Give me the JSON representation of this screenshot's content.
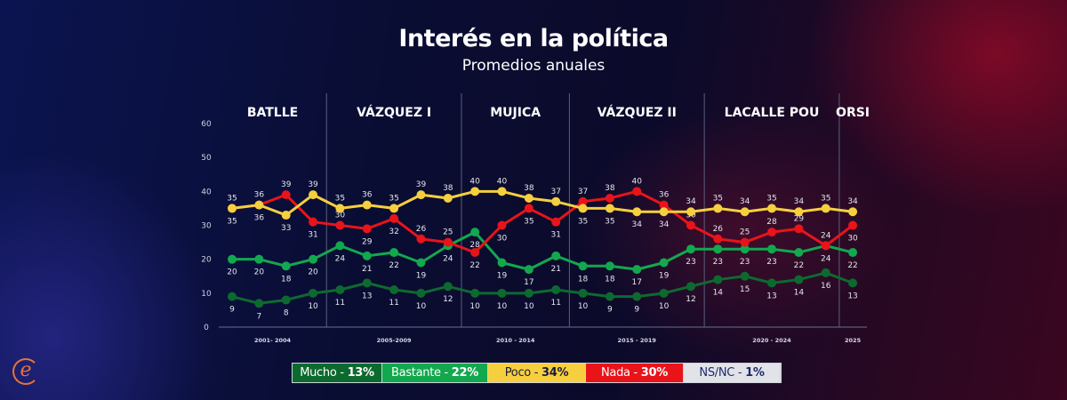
{
  "title": "Interés en la política",
  "subtitle": "Promedios anuales",
  "chart_data": {
    "type": "line",
    "ylim": [
      0,
      60
    ],
    "yticks": [
      0,
      10,
      20,
      30,
      40,
      50,
      60
    ],
    "periods": [
      {
        "name": "BATLLE",
        "years": "2001- 2004",
        "count": 4
      },
      {
        "name": "VÁZQUEZ I",
        "years": "2005-2009",
        "count": 5
      },
      {
        "name": "MUJICA",
        "years": "2010 - 2014",
        "count": 4
      },
      {
        "name": "VÁZQUEZ II",
        "years": "2015 - 2019",
        "count": 5
      },
      {
        "name": "LACALLE POU",
        "years": "2020 - 2024",
        "count": 5
      },
      {
        "name": "ORSI",
        "years": "2025",
        "count": 1
      }
    ],
    "series": [
      {
        "name": "Poco",
        "color": "#f5cf3e",
        "values": [
          35,
          36,
          33,
          39,
          35,
          36,
          35,
          39,
          38,
          40,
          40,
          38,
          37,
          35,
          35,
          34,
          34,
          34,
          35,
          34,
          35,
          34,
          35,
          34
        ]
      },
      {
        "name": "Nada",
        "color": "#e8141a",
        "values": [
          35,
          36,
          39,
          31,
          30,
          29,
          32,
          26,
          25,
          22,
          30,
          35,
          31,
          37,
          38,
          40,
          36,
          30,
          26,
          25,
          28,
          29,
          24,
          30
        ]
      },
      {
        "name": "Bastante",
        "color": "#12a84e",
        "values": [
          20,
          20,
          18,
          20,
          24,
          21,
          22,
          19,
          24,
          28,
          19,
          17,
          21,
          18,
          18,
          17,
          19,
          23,
          23,
          23,
          23,
          22,
          24,
          22
        ]
      },
      {
        "name": "Mucho",
        "color": "#0d6a2f",
        "values": [
          9,
          7,
          8,
          10,
          11,
          13,
          11,
          10,
          12,
          10,
          10,
          10,
          11,
          10,
          9,
          9,
          10,
          12,
          14,
          15,
          13,
          14,
          16,
          13
        ]
      }
    ],
    "grid": false
  },
  "legend": [
    {
      "label": "Mucho - ",
      "value": "13%",
      "bg": "#0d6a2f",
      "fg": "#ffffff",
      "vfg": "#ffffff"
    },
    {
      "label": "Bastante - ",
      "value": "22%",
      "bg": "#12a84e",
      "fg": "#ffffff",
      "vfg": "#ffffff"
    },
    {
      "label": "Poco - ",
      "value": "34%",
      "bg": "#f5cf3e",
      "fg": "#1a1a3a",
      "vfg": "#1a1a3a"
    },
    {
      "label": "Nada - ",
      "value": "30%",
      "bg": "#e8141a",
      "fg": "#ffffff",
      "vfg": "#ffffff"
    },
    {
      "label": "NS/NC - ",
      "value": "1%",
      "bg": "#e1e3e8",
      "fg": "#1e2a6a",
      "vfg": "#1e2a6a"
    }
  ],
  "logo": "e"
}
